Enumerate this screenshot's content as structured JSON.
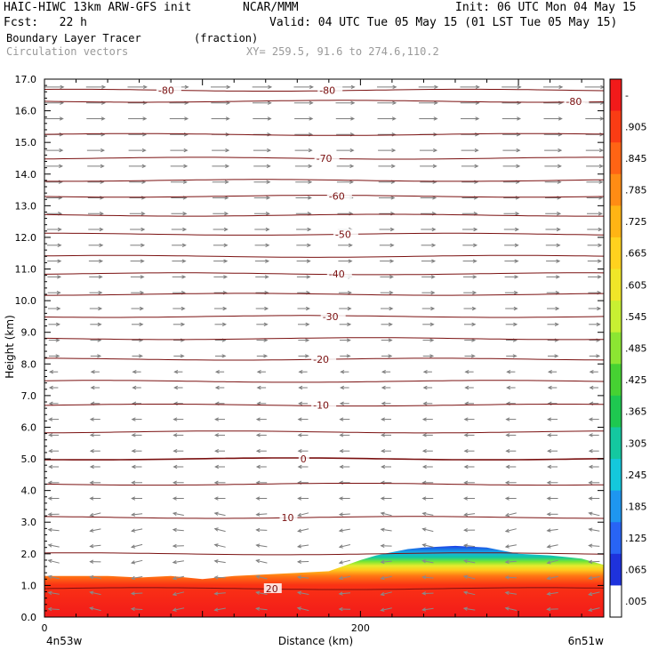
{
  "header": {
    "title": "HAIC-HIWC 13km ARW-GFS init",
    "org": "NCAR/MMM",
    "init": "Init: 06 UTC Mon 04 May 15",
    "fcst": "Fcst:   22 h",
    "valid": "Valid: 04 UTC Tue 05 May 15 (01 LST Tue 05 May 15)",
    "field": "Boundary Layer Tracer",
    "units": "(fraction)",
    "vectors": "Circulation vectors",
    "xy": "XY= 259.5, 91.6 to 274.6,110.2"
  },
  "chart_data": {
    "type": "heatmap",
    "title": "Boundary Layer Tracer",
    "units": "(fraction)",
    "xlabel": "Distance (km)",
    "ylabel": "Height (km)",
    "xlim": [
      0,
      354
    ],
    "ylim": [
      0,
      17
    ],
    "x_ticks": [
      {
        "value": 0,
        "label": "0"
      },
      {
        "value": 200,
        "label": "200"
      }
    ],
    "x_end_labels": {
      "left": "4n53w",
      "right": "6n51w"
    },
    "y_ticks": [
      "0.0",
      "1.0",
      "2.0",
      "3.0",
      "4.0",
      "5.0",
      "6.0",
      "7.0",
      "8.0",
      "9.0",
      "10.0",
      "11.0",
      "12.0",
      "13.0",
      "14.0",
      "15.0",
      "16.0",
      "17.0"
    ],
    "colorbar": {
      "labels": [
        "-",
        ".905",
        ".845",
        ".785",
        ".725",
        ".665",
        ".605",
        ".545",
        ".485",
        ".425",
        ".365",
        ".305",
        ".245",
        ".185",
        ".125",
        ".065",
        ".005"
      ],
      "colors": [
        "#f21a1a",
        "#fa3c14",
        "#ff6414",
        "#ff8c14",
        "#ffb414",
        "#ffd21e",
        "#f0e628",
        "#c8f032",
        "#8ce632",
        "#46d232",
        "#1ec850",
        "#14c8a0",
        "#14c8dc",
        "#1e96f0",
        "#2864f5",
        "#1e32dc",
        "#ffffff"
      ]
    },
    "tracer_top": {
      "x": [
        0,
        20,
        40,
        60,
        80,
        100,
        120,
        140,
        160,
        180,
        200,
        210,
        220,
        230,
        240,
        260,
        280,
        300,
        320,
        340,
        354
      ],
      "height": [
        1.3,
        1.3,
        1.3,
        1.25,
        1.3,
        1.2,
        1.3,
        1.35,
        1.4,
        1.45,
        1.8,
        1.95,
        2.05,
        2.15,
        2.2,
        2.25,
        2.2,
        2.0,
        1.95,
        1.85,
        1.65
      ]
    },
    "contours": [
      {
        "label": "20",
        "height": 0.9,
        "label_x": 140
      },
      {
        "label": "",
        "height": 2.0
      },
      {
        "label": "10",
        "height": 3.15,
        "label_x": 150
      },
      {
        "label": "",
        "height": 4.2
      },
      {
        "label": "0",
        "height": 5.0,
        "label_x": 162
      },
      {
        "label": "",
        "height": 5.85
      },
      {
        "label": "-10",
        "height": 6.7,
        "label_x": 170
      },
      {
        "label": "",
        "height": 7.45
      },
      {
        "label": "-20",
        "height": 8.15,
        "label_x": 170
      },
      {
        "label": "",
        "height": 8.8
      },
      {
        "label": "-30",
        "height": 9.5,
        "label_x": 176
      },
      {
        "label": "",
        "height": 10.2
      },
      {
        "label": "-40",
        "height": 10.85,
        "label_x": 180
      },
      {
        "label": "",
        "height": 11.4
      },
      {
        "label": "-50",
        "height": 12.1,
        "label_x": 184
      },
      {
        "label": "",
        "height": 12.7
      },
      {
        "label": "-60",
        "height": 13.3,
        "label_x": 180
      },
      {
        "label": "",
        "height": 13.8
      },
      {
        "label": "-70",
        "height": 14.5,
        "label_x": 172
      },
      {
        "label": "",
        "height": 15.25
      },
      {
        "label": "-80",
        "height": 16.65,
        "label_x": 72
      },
      {
        "label": "-80",
        "height": 16.65,
        "label_x": 174
      },
      {
        "label": "-80",
        "height": 16.3,
        "label_x": 330
      }
    ]
  }
}
